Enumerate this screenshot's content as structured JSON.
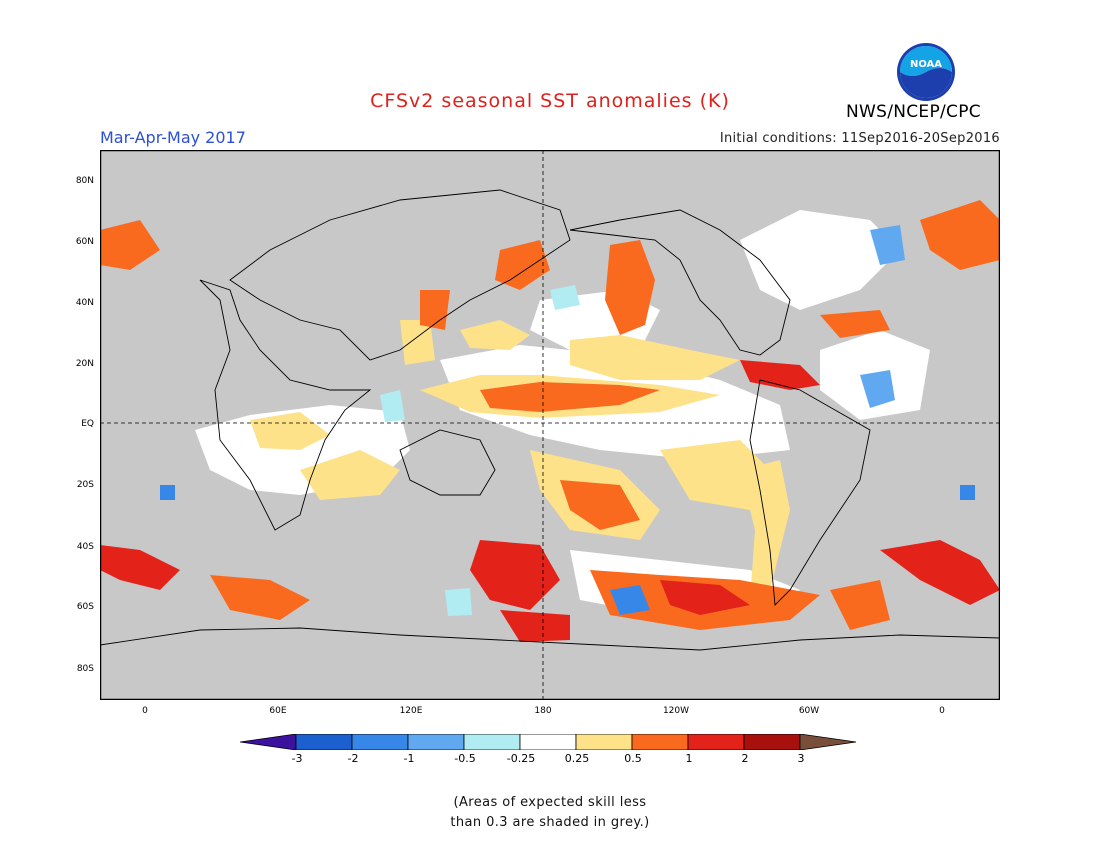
{
  "title": "CFSv2 seasonal SST anomalies (K)",
  "season": "Mar-Apr-May 2017",
  "initial_conditions": "Initial conditions: 11Sep2016-20Sep2016",
  "agency": "NWS/NCEP/CPC",
  "logo_text": "NOAA",
  "lat_labels": [
    "80N",
    "60N",
    "40N",
    "20N",
    "EQ",
    "20S",
    "40S",
    "60S",
    "80S"
  ],
  "lon_labels": [
    "0",
    "60E",
    "120E",
    "180",
    "120W",
    "60W",
    "0"
  ],
  "colorbar": {
    "labels": [
      "-3",
      "-2",
      "-1",
      "-0.5",
      "-0.25",
      "0.25",
      "0.5",
      "1",
      "2",
      "3"
    ],
    "colors": [
      "#3c119e",
      "#1c60d0",
      "#3787e8",
      "#60a8f0",
      "#b0ecf2",
      "#ffffff",
      "#fde28a",
      "#fa6a1e",
      "#e3221a",
      "#a8100e",
      "#7a4f3a"
    ]
  },
  "colors": {
    "grey_mask": "#c8c8c8",
    "ocean": "#ffffff",
    "coast": "#000000"
  },
  "note_line1": "(Areas of expected skill less",
  "note_line2": "than 0.3 are shaded in grey.)"
}
